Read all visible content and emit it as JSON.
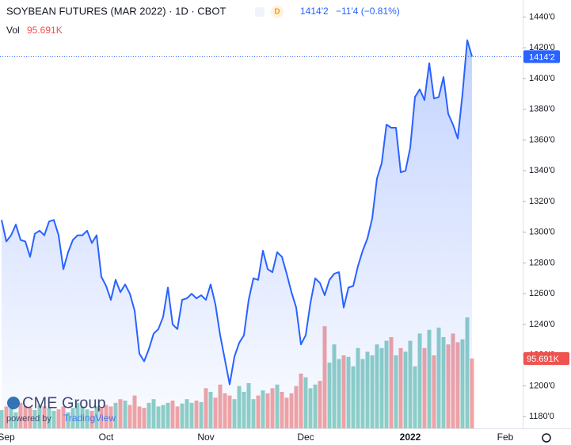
{
  "chart_data": {
    "type": "line",
    "title": "SOYBEAN FUTURES (MAR 2022) · 1D · CBOT",
    "badge": "D",
    "last_price_label": "1414'2",
    "change": "−11'4 (−0.81%)",
    "volume_badge": "95.691K",
    "watermark": {
      "brand": "CME Group",
      "powered": "powered by",
      "vendor": "TradingView"
    },
    "categories": [
      null,
      "Sep",
      null,
      null,
      null,
      null,
      null,
      null,
      null,
      null,
      null,
      null,
      null,
      null,
      null,
      null,
      null,
      null,
      null,
      null,
      null,
      null,
      "Oct",
      null,
      null,
      null,
      null,
      null,
      null,
      null,
      null,
      null,
      null,
      null,
      null,
      null,
      null,
      null,
      null,
      null,
      null,
      null,
      null,
      "Nov",
      null,
      null,
      null,
      null,
      null,
      null,
      null,
      null,
      null,
      null,
      null,
      null,
      null,
      null,
      null,
      null,
      null,
      null,
      null,
      null,
      "Dec",
      null,
      null,
      null,
      null,
      null,
      null,
      null,
      null,
      null,
      null,
      null,
      null,
      null,
      null,
      null,
      null,
      null,
      null,
      null,
      null,
      null,
      "2022",
      null,
      null,
      null,
      null,
      null,
      null,
      null,
      null,
      null,
      null,
      null,
      null,
      null,
      null,
      null,
      null,
      null,
      null,
      null,
      "Feb"
    ],
    "series": [
      {
        "color": "#2962ff",
        "values": [
          1308,
          1294,
          1298,
          1305,
          1295,
          1294,
          1284,
          1299,
          1301,
          1298,
          1307,
          1308,
          1298,
          1276,
          1287,
          1295,
          1298,
          1298,
          1301,
          1293,
          1298,
          1271,
          1265,
          1256,
          1269,
          1261,
          1266,
          1260,
          1249,
          1221,
          1216,
          1224,
          1234,
          1237,
          1245,
          1264,
          1240,
          1237,
          1256,
          1257,
          1260,
          1257,
          1259,
          1256,
          1266,
          1253,
          1233,
          1217,
          1201,
          1219,
          1228,
          1233,
          1256,
          1270,
          1269,
          1288,
          1276,
          1274,
          1287,
          1284,
          1273,
          1261,
          1251,
          1227,
          1233,
          1254,
          1270,
          1267,
          1259,
          1269,
          1273,
          1274,
          1251,
          1264,
          1265,
          1278,
          1288,
          1296,
          1309,
          1335,
          1345,
          1370,
          1368,
          1368,
          1339,
          1340,
          1355,
          1388,
          1393,
          1386,
          1410,
          1387,
          1388,
          1401,
          1377,
          1370,
          1361,
          1390,
          1425,
          1414.25,
          null,
          null,
          null,
          null,
          null,
          null,
          null
        ]
      },
      {
        "name": "Vol",
        "type": "bar",
        "color_up": "#8fd0c6",
        "color_down": "#f2a4a4",
        "values": [
          25000,
          30000,
          28000,
          22000,
          35000,
          30000,
          28000,
          25000,
          32000,
          30000,
          28000,
          24000,
          26000,
          30000,
          22000,
          28000,
          35000,
          30000,
          26000,
          24000,
          30000,
          28000,
          32000,
          30000,
          35000,
          40000,
          38000,
          32000,
          45000,
          30000,
          28000,
          35000,
          40000,
          30000,
          32000,
          35000,
          38000,
          30000,
          34000,
          40000,
          35000,
          38000,
          36000,
          55000,
          50000,
          42000,
          60000,
          48000,
          45000,
          40000,
          58000,
          50000,
          62000,
          40000,
          45000,
          52000,
          48000,
          55000,
          60000,
          50000,
          42000,
          48000,
          58000,
          75000,
          70000,
          55000,
          60000,
          65000,
          140000,
          90000,
          115000,
          95000,
          100000,
          98000,
          85000,
          110000,
          95000,
          105000,
          100000,
          115000,
          110000,
          120000,
          125000,
          100000,
          110000,
          105000,
          120000,
          85000,
          130000,
          110000,
          135000,
          100000,
          138000,
          125000,
          115000,
          130000,
          118000,
          122000,
          152000,
          95691,
          null,
          null,
          null,
          null,
          null,
          null,
          null
        ]
      }
    ],
    "ylim": [
      1172.4,
      1451.1
    ],
    "yticks": [
      {
        "value": 1180,
        "label": "1180'0"
      },
      {
        "value": 1200,
        "label": "1200'0"
      },
      {
        "value": 1220,
        "label": "1220'0"
      },
      {
        "value": 1240,
        "label": "1240'0"
      },
      {
        "value": 1260,
        "label": "1260'0"
      },
      {
        "value": 1280,
        "label": "1280'0"
      },
      {
        "value": 1300,
        "label": "1300'0"
      },
      {
        "value": 1320,
        "label": "1320'0"
      },
      {
        "value": 1340,
        "label": "1340'0"
      },
      {
        "value": 1360,
        "label": "1360'0"
      },
      {
        "value": 1380,
        "label": "1380'0"
      },
      {
        "value": 1400,
        "label": "1400'0"
      },
      {
        "value": 1420,
        "label": "1420'0"
      },
      {
        "value": 1440,
        "label": "1440'0"
      }
    ],
    "grid": false
  }
}
